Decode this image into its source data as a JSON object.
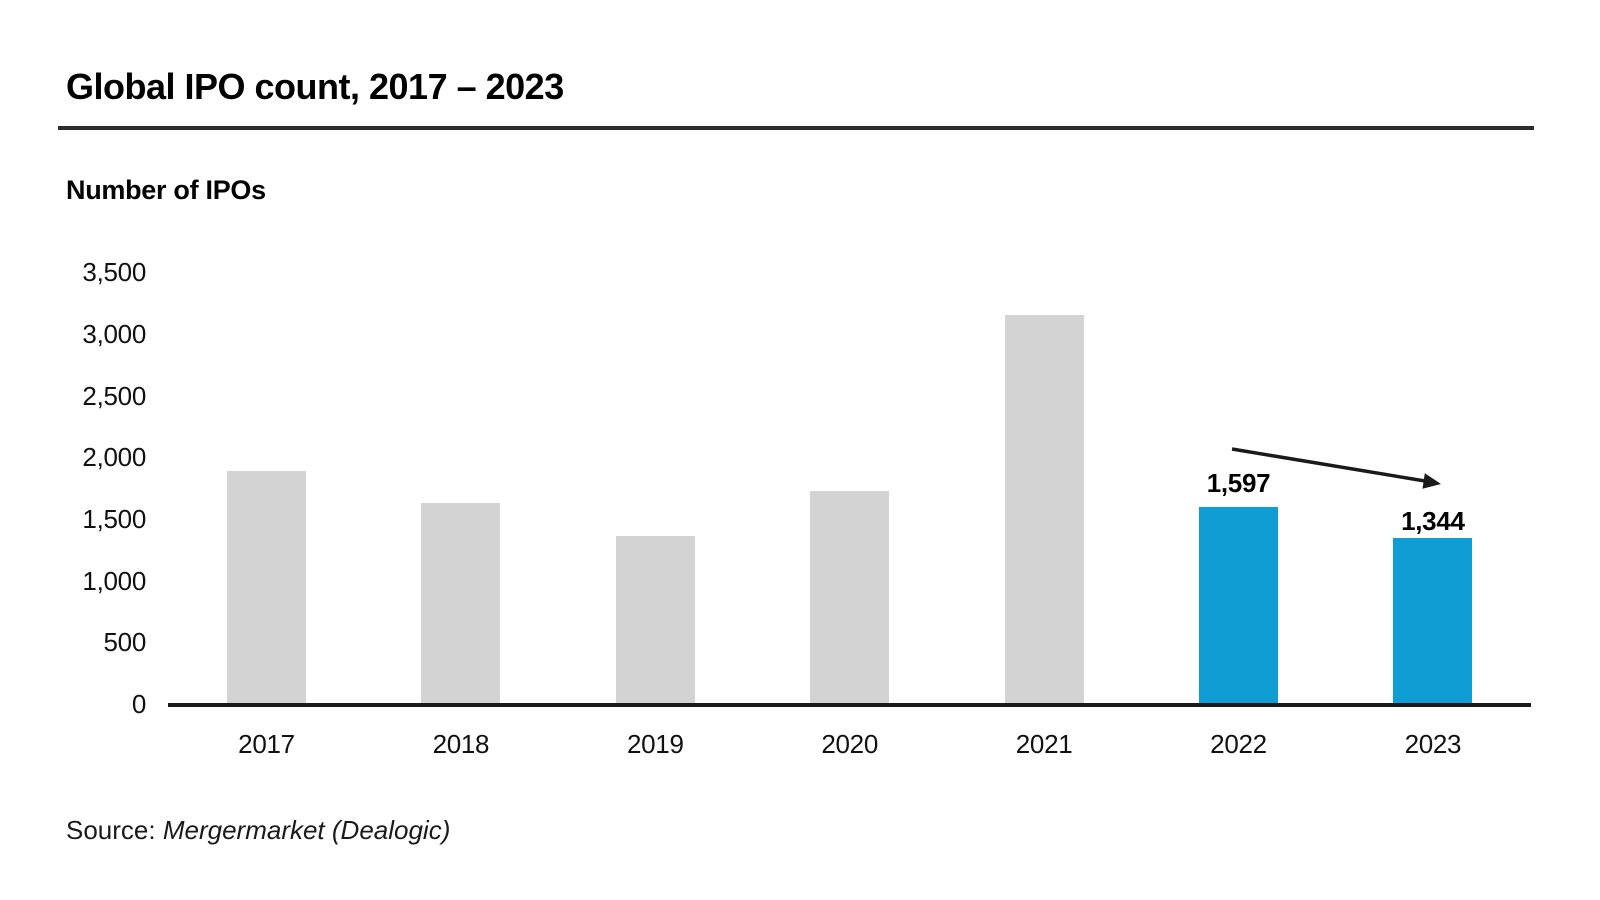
{
  "header": {
    "title": "Global IPO count, 2017 – 2023"
  },
  "chart": {
    "axis_title": "Number of IPOs",
    "colors": {
      "bar_default": "#d3d3d3",
      "bar_highlight": "#0f9dd4",
      "axis": "#1a1a1a",
      "arrow": "#1a1a1a"
    }
  },
  "chart_data": {
    "type": "bar",
    "title": "Global IPO count, 2017 – 2023",
    "ylabel": "Number of IPOs",
    "xlabel": "",
    "categories": [
      "2017",
      "2018",
      "2019",
      "2020",
      "2021",
      "2022",
      "2023"
    ],
    "values": [
      1885,
      1625,
      1360,
      1725,
      3150,
      1597,
      1344
    ],
    "value_labels": [
      null,
      null,
      null,
      null,
      null,
      "1,597",
      "1,344"
    ],
    "highlighted": [
      false,
      false,
      false,
      false,
      false,
      true,
      true
    ],
    "ylim": [
      0,
      3500
    ],
    "yticks": [
      0,
      500,
      1000,
      1500,
      2000,
      2500,
      3000,
      3500
    ],
    "ytick_labels": [
      "0",
      "500",
      "1,000",
      "1,500",
      "2,000",
      "2,500",
      "3,000",
      "3,500"
    ],
    "grid": false,
    "legend": false,
    "annotation": {
      "type": "arrow-down-right",
      "from_category": "2022",
      "to_category": "2023"
    }
  },
  "source": {
    "prefix": "Source:",
    "text": "Mergermarket (Dealogic)"
  }
}
